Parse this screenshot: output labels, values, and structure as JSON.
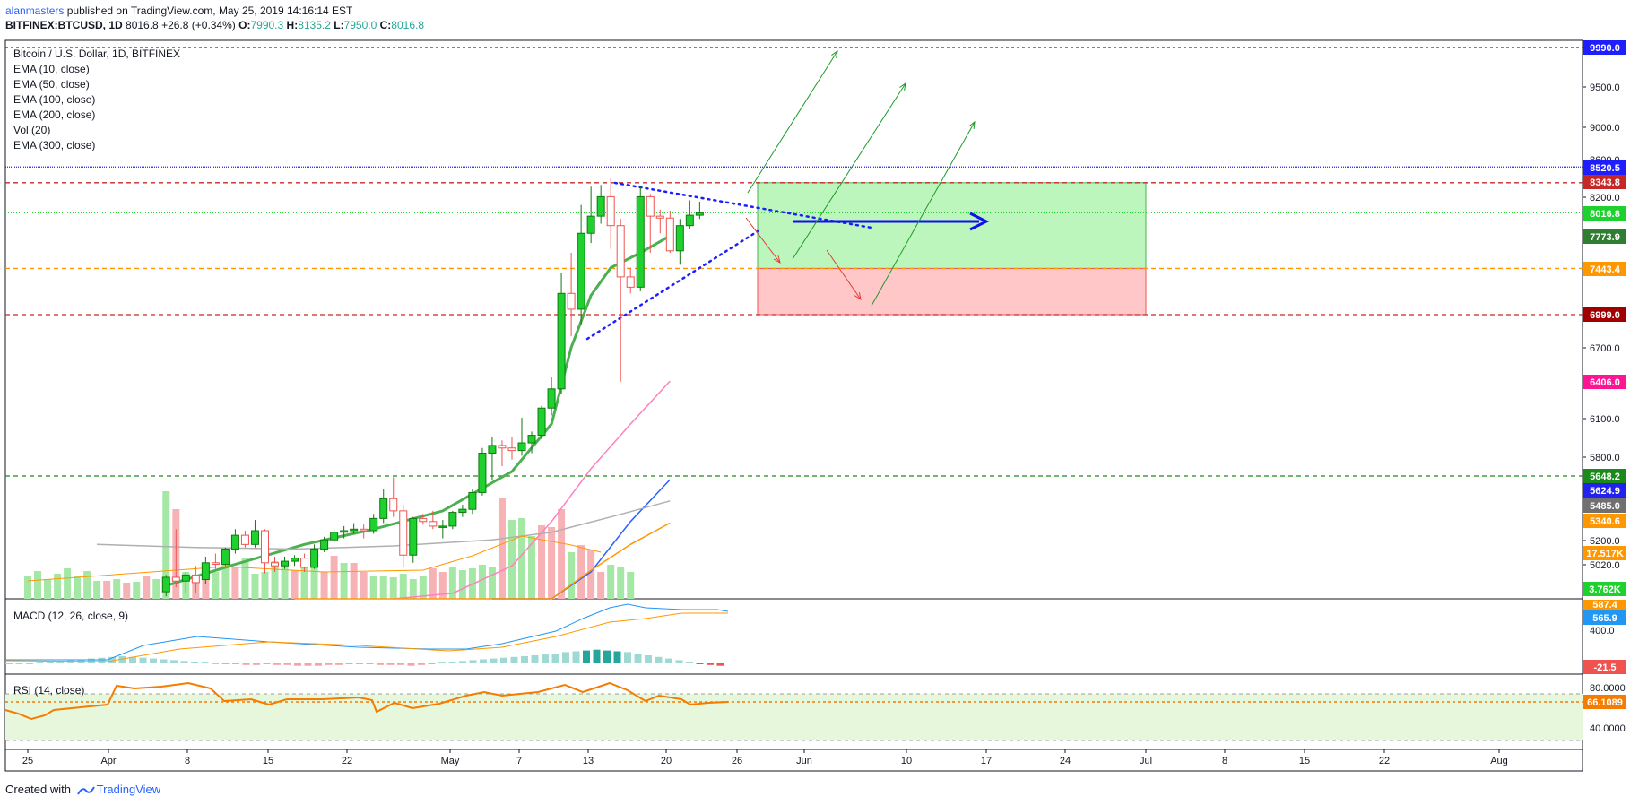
{
  "header": {
    "author": "alanmasters",
    "published_text": "published on TradingView.com, May 25, 2019 14:16:14 EST",
    "symbol": "BITFINEX:BTCUSD, 1D",
    "last": "8016.8",
    "change": "+26.8 (+0.34%)",
    "o_label": "O:",
    "o": "7990.3",
    "h_label": "H:",
    "h": "8135.2",
    "l_label": "L:",
    "l": "7950.0",
    "c_label": "C:",
    "c": "8016.8"
  },
  "legend": [
    "Bitcoin / U.S. Dollar, 1D, BITFINEX",
    "EMA (10, close)",
    "EMA (50, close)",
    "EMA (100, close)",
    "EMA (200, close)",
    "Vol (20)",
    "EMA (300, close)"
  ],
  "footer": {
    "created_with": "Created with",
    "brand": "TradingView"
  },
  "colors": {
    "up": "#26a69a",
    "up_fill": "#1fd12f",
    "down": "#ef5350",
    "ema10": "#4caf50",
    "ema50": "#ff80c0",
    "ema100": "#2962ff",
    "ema200": "#ff9800",
    "ema300": "#b0b0b0",
    "vol_ma": "#ff9800",
    "macd": "#2196f3",
    "signal": "#ff9800",
    "rsi": "#f57c00",
    "target_box": "#b9f5b9",
    "stop_box": "#ffc4c4"
  },
  "chart_data": {
    "type": "candlestick",
    "title": "Bitcoin / U.S. Dollar, 1D, BITFINEX",
    "price_axis_ticks": [
      9500.0,
      9000.0,
      8200.0,
      6700.0,
      6100.0,
      5800.0,
      5200.0,
      5020.0
    ],
    "price_axis_ticks_partial": [
      "8600.0"
    ],
    "time_axis_ticks": [
      "25",
      "Apr",
      "8",
      "15",
      "22",
      "May",
      "7",
      "13",
      "20",
      "26",
      "Jun",
      "10",
      "17",
      "24",
      "Jul",
      "8",
      "15",
      "22",
      "Aug"
    ],
    "candles": [
      {
        "d": "Apr 1",
        "o": 4890,
        "h": 5000,
        "l": 4860,
        "c": 4985
      },
      {
        "d": "Apr 2",
        "o": 4985,
        "h": 5300,
        "l": 4920,
        "c": 4960
      },
      {
        "d": "Apr 3",
        "o": 4960,
        "h": 5020,
        "l": 4880,
        "c": 5000
      },
      {
        "d": "Apr 4",
        "o": 5000,
        "h": 5060,
        "l": 4880,
        "c": 4950
      },
      {
        "d": "Apr 5",
        "o": 4970,
        "h": 5120,
        "l": 4940,
        "c": 5080
      },
      {
        "d": "Apr 6",
        "o": 5080,
        "h": 5140,
        "l": 5040,
        "c": 5070
      },
      {
        "d": "Apr 7",
        "o": 5070,
        "h": 5180,
        "l": 5060,
        "c": 5170
      },
      {
        "d": "Apr 8",
        "o": 5170,
        "h": 5300,
        "l": 5140,
        "c": 5260
      },
      {
        "d": "Apr 9",
        "o": 5260,
        "h": 5290,
        "l": 5180,
        "c": 5200
      },
      {
        "d": "Apr 10",
        "o": 5200,
        "h": 5360,
        "l": 5180,
        "c": 5290
      },
      {
        "d": "Apr 11",
        "o": 5290,
        "h": 5300,
        "l": 5010,
        "c": 5080
      },
      {
        "d": "Apr 12",
        "o": 5080,
        "h": 5120,
        "l": 5020,
        "c": 5060
      },
      {
        "d": "Apr 13",
        "o": 5060,
        "h": 5120,
        "l": 5040,
        "c": 5090
      },
      {
        "d": "Apr 14",
        "o": 5090,
        "h": 5130,
        "l": 5060,
        "c": 5110
      },
      {
        "d": "Apr 15",
        "o": 5110,
        "h": 5140,
        "l": 5020,
        "c": 5050
      },
      {
        "d": "Apr 16",
        "o": 5050,
        "h": 5200,
        "l": 5040,
        "c": 5170
      },
      {
        "d": "Apr 17",
        "o": 5170,
        "h": 5250,
        "l": 5150,
        "c": 5230
      },
      {
        "d": "Apr 18",
        "o": 5230,
        "h": 5300,
        "l": 5210,
        "c": 5280
      },
      {
        "d": "Apr 19",
        "o": 5280,
        "h": 5320,
        "l": 5240,
        "c": 5290
      },
      {
        "d": "Apr 20",
        "o": 5290,
        "h": 5340,
        "l": 5270,
        "c": 5300
      },
      {
        "d": "Apr 21",
        "o": 5300,
        "h": 5330,
        "l": 5240,
        "c": 5290
      },
      {
        "d": "Apr 22",
        "o": 5290,
        "h": 5400,
        "l": 5270,
        "c": 5370
      },
      {
        "d": "Apr 23",
        "o": 5370,
        "h": 5560,
        "l": 5340,
        "c": 5500
      },
      {
        "d": "Apr 24",
        "o": 5500,
        "h": 5640,
        "l": 5380,
        "c": 5420
      },
      {
        "d": "Apr 25",
        "o": 5420,
        "h": 5460,
        "l": 5050,
        "c": 5130
      },
      {
        "d": "Apr 26",
        "o": 5130,
        "h": 5380,
        "l": 5080,
        "c": 5370
      },
      {
        "d": "Apr 27",
        "o": 5370,
        "h": 5400,
        "l": 5330,
        "c": 5350
      },
      {
        "d": "Apr 28",
        "o": 5350,
        "h": 5420,
        "l": 5300,
        "c": 5320
      },
      {
        "d": "Apr 29",
        "o": 5320,
        "h": 5360,
        "l": 5240,
        "c": 5320
      },
      {
        "d": "Apr 30",
        "o": 5320,
        "h": 5420,
        "l": 5300,
        "c": 5410
      },
      {
        "d": "May 1",
        "o": 5410,
        "h": 5460,
        "l": 5380,
        "c": 5430
      },
      {
        "d": "May 2",
        "o": 5430,
        "h": 5560,
        "l": 5400,
        "c": 5540
      },
      {
        "d": "May 3",
        "o": 5540,
        "h": 5860,
        "l": 5520,
        "c": 5820
      },
      {
        "d": "May 4",
        "o": 5820,
        "h": 5950,
        "l": 5620,
        "c": 5880
      },
      {
        "d": "May 5",
        "o": 5880,
        "h": 5920,
        "l": 5720,
        "c": 5860
      },
      {
        "d": "May 6",
        "o": 5860,
        "h": 5950,
        "l": 5770,
        "c": 5840
      },
      {
        "d": "May 7",
        "o": 5840,
        "h": 6100,
        "l": 5800,
        "c": 5900
      },
      {
        "d": "May 8",
        "o": 5900,
        "h": 5990,
        "l": 5820,
        "c": 5960
      },
      {
        "d": "May 9",
        "o": 5960,
        "h": 6200,
        "l": 5930,
        "c": 6180
      },
      {
        "d": "May 10",
        "o": 6180,
        "h": 6440,
        "l": 6120,
        "c": 6340
      },
      {
        "d": "May 11",
        "o": 6340,
        "h": 7400,
        "l": 6300,
        "c": 7200
      },
      {
        "d": "May 12",
        "o": 7200,
        "h": 7600,
        "l": 6800,
        "c": 7050
      },
      {
        "d": "May 13",
        "o": 7050,
        "h": 8100,
        "l": 6900,
        "c": 7800
      },
      {
        "d": "May 14",
        "o": 7800,
        "h": 8300,
        "l": 7700,
        "c": 7980
      },
      {
        "d": "May 15",
        "o": 7980,
        "h": 8320,
        "l": 7900,
        "c": 8190
      },
      {
        "d": "May 16",
        "o": 8190,
        "h": 8390,
        "l": 7640,
        "c": 7880
      },
      {
        "d": "May 17",
        "o": 7880,
        "h": 7950,
        "l": 6400,
        "c": 7360
      },
      {
        "d": "May 18",
        "o": 7360,
        "h": 7450,
        "l": 7200,
        "c": 7260
      },
      {
        "d": "May 19",
        "o": 7260,
        "h": 8300,
        "l": 7220,
        "c": 8190
      },
      {
        "d": "May 20",
        "o": 8190,
        "h": 8220,
        "l": 7600,
        "c": 7980
      },
      {
        "d": "May 21",
        "o": 7980,
        "h": 8050,
        "l": 7800,
        "c": 7960
      },
      {
        "d": "May 22",
        "o": 7960,
        "h": 8040,
        "l": 7600,
        "c": 7620
      },
      {
        "d": "May 23",
        "o": 7620,
        "h": 7950,
        "l": 7480,
        "c": 7880
      },
      {
        "d": "May 24",
        "o": 7880,
        "h": 8150,
        "l": 7840,
        "c": 7990
      },
      {
        "d": "May 25",
        "o": 7990,
        "h": 8135.2,
        "l": 7950,
        "c": 8016.8
      }
    ],
    "price_labels": [
      {
        "value": "9990.0",
        "color": "#1e1eff"
      },
      {
        "value": "8520.5",
        "color": "#1e1eff"
      },
      {
        "value": "8343.8",
        "color": "#c62828"
      },
      {
        "value": "8016.8",
        "color": "#1fd12f"
      },
      {
        "value": "7773.9",
        "color": "#2e7d32"
      },
      {
        "value": "7443.4",
        "color": "#ff9800"
      },
      {
        "value": "6999.0",
        "color": "#a00000"
      },
      {
        "value": "6406.0",
        "color": "#ff1493"
      },
      {
        "value": "5648.2",
        "color": "#1b8a1b"
      },
      {
        "value": "5624.9",
        "color": "#2222ee"
      },
      {
        "value": "5485.0",
        "color": "#707070"
      },
      {
        "value": "5340.6",
        "color": "#ff9800"
      },
      {
        "value": "17.517K",
        "color": "#ff9800"
      },
      {
        "value": "3.762K",
        "color": "#1fd12f"
      }
    ],
    "horizontal_levels": [
      9990.0,
      8520.5,
      8343.8,
      8016.8,
      7443.4,
      6999.0,
      5648.2
    ],
    "ema10_end": 7773.9,
    "ema50_end": 6406.0,
    "ema100_end": 5624.9,
    "ema200_end": 5340.6,
    "ema300_end": 5485.0,
    "volume_last": "3.762K",
    "volume_ma_last": "17.517K",
    "macd": {
      "title": "MACD (12, 26, close, 9)",
      "ticks": [
        "400.0"
      ],
      "macd_last": "565.9",
      "signal_last_partial": "587.4",
      "hist_last": "-21.5"
    },
    "rsi": {
      "title": "RSI (14, close)",
      "ticks": [
        "80.0000",
        "40.0000"
      ],
      "last": "66.1089",
      "upper": 70,
      "lower": 30
    },
    "trade_setup": {
      "entry": 7443.4,
      "target": 8343.8,
      "stop": 6999.0
    }
  }
}
